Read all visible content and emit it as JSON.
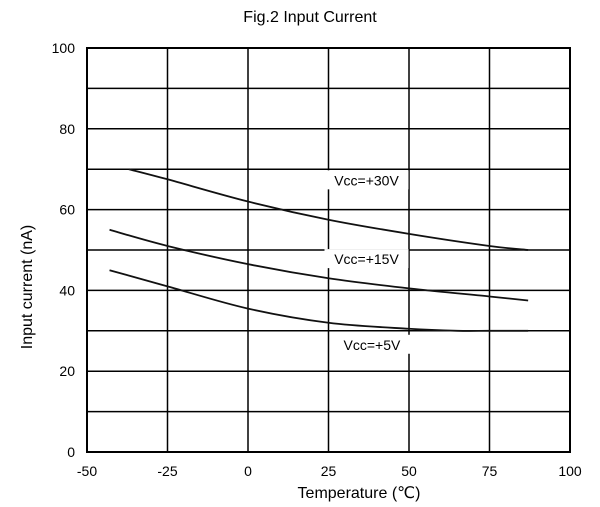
{
  "chart_data": {
    "type": "line",
    "title": "Fig.2 Input Current",
    "xlabel": "Temperature (℃)",
    "ylabel": "Input current (nA)",
    "xlim": [
      -50,
      100
    ],
    "ylim": [
      0,
      100
    ],
    "xticks": [
      -50,
      -25,
      0,
      25,
      50,
      75,
      100
    ],
    "yticks": [
      0,
      20,
      40,
      60,
      80,
      100
    ],
    "grid": true,
    "series": [
      {
        "name": "Vcc=+30V",
        "x": [
          -37,
          -25,
          0,
          25,
          50,
          75,
          87
        ],
        "y": [
          70,
          67.5,
          62,
          57.5,
          54,
          51,
          50
        ]
      },
      {
        "name": "Vcc=+15V",
        "x": [
          -43,
          -25,
          0,
          25,
          50,
          75,
          87
        ],
        "y": [
          55,
          51,
          46.5,
          43,
          40.5,
          38.5,
          37.5
        ]
      },
      {
        "name": "Vcc=+5V",
        "x": [
          -43,
          -25,
          0,
          25,
          50,
          65,
          75,
          87
        ],
        "y": [
          45,
          41,
          35.5,
          32,
          30.5,
          30,
          30,
          30
        ]
      }
    ]
  }
}
